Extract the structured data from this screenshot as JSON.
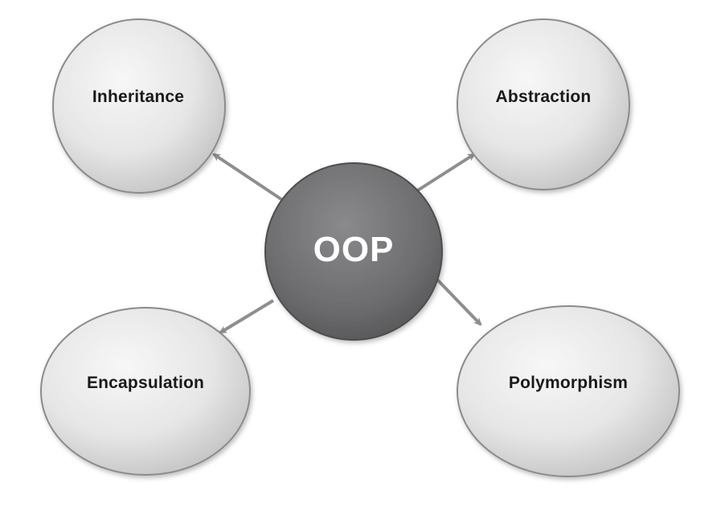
{
  "diagram": {
    "center": {
      "label": "OOP"
    },
    "concepts": [
      {
        "label": "Inheritance"
      },
      {
        "label": "Abstraction"
      },
      {
        "label": "Encapsulation"
      },
      {
        "label": "Polymorphism"
      }
    ]
  },
  "colors": {
    "center_fill": "#6b6b6d",
    "center_fill_light": "#8a8a8c",
    "node_fill_light": "#f4f4f4",
    "node_fill_dark": "#cfcfcf",
    "node_stroke": "#8c8c8c",
    "arrow": "#8e8e8e"
  }
}
